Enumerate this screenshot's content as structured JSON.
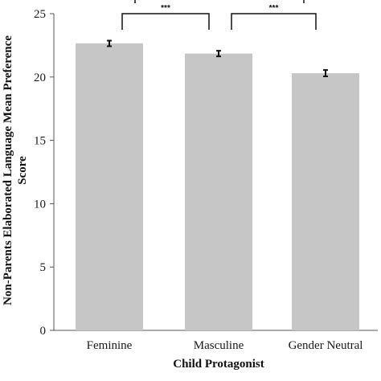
{
  "chart_data": {
    "type": "bar",
    "title": "",
    "xlabel": "Child Protagonist",
    "ylabel_lines": [
      "Non-Parents Elaborated Language Mean Preference",
      "Score"
    ],
    "categories": [
      "Feminine",
      "Masculine",
      "Gender Neutral"
    ],
    "values": [
      22.65,
      21.85,
      20.3
    ],
    "error": [
      0.22,
      0.22,
      0.25
    ],
    "ylim": [
      0,
      25
    ],
    "yticks": [
      0,
      5,
      10,
      15,
      20,
      25
    ],
    "grid": false,
    "legend": "none",
    "bar_color": "#c6c6c6",
    "comparisons": [
      {
        "from": 0,
        "to": 1,
        "label": "***"
      },
      {
        "from": 1,
        "to": 2,
        "label": "***"
      }
    ]
  }
}
